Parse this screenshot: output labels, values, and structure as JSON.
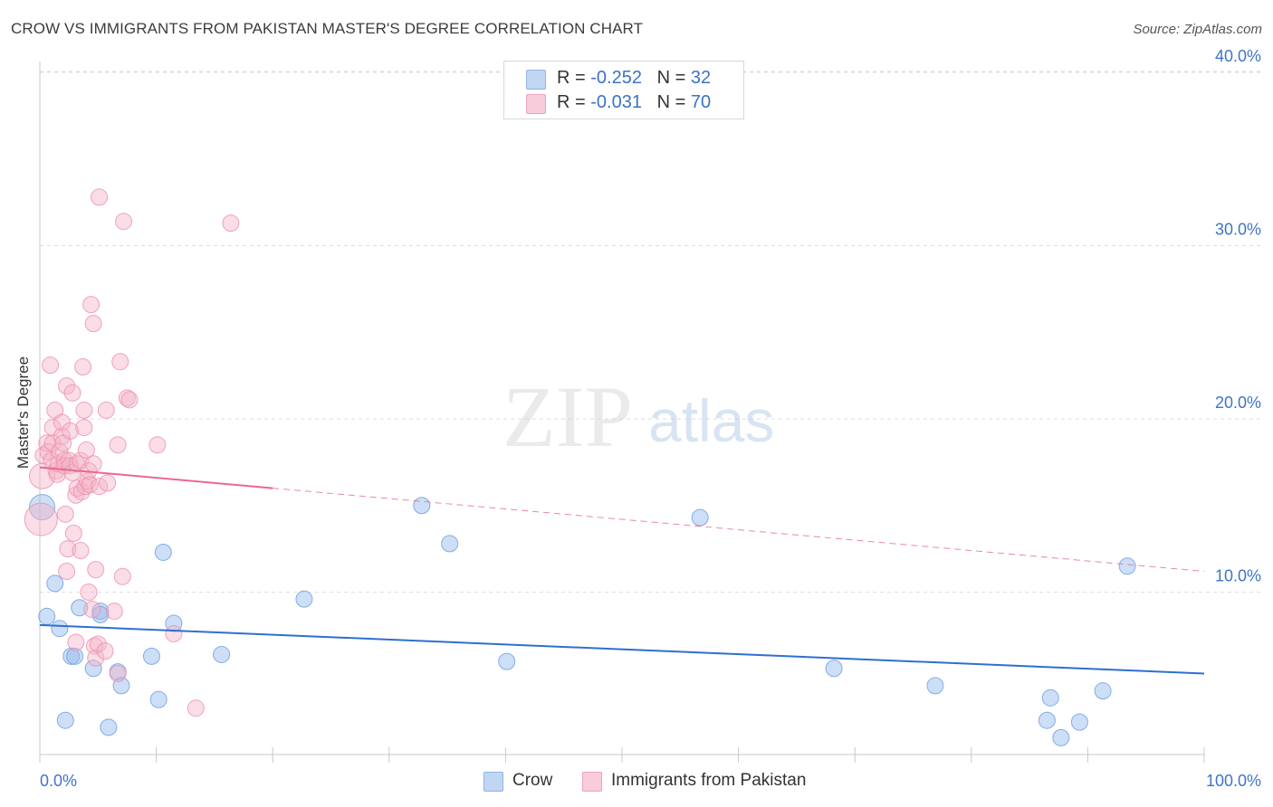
{
  "chart_data": {
    "type": "scatter",
    "title": "CROW VS IMMIGRANTS FROM PAKISTAN MASTER'S DEGREE CORRELATION CHART",
    "source": "Source: ZipAtlas.com",
    "xlabel": "",
    "ylabel": "Master's Degree",
    "xlim": [
      0,
      100
    ],
    "ylim": [
      0,
      42
    ],
    "x_tick_labels": [
      "0.0%",
      "100.0%"
    ],
    "y_ticks": [
      10,
      20,
      30,
      40
    ],
    "y_tick_labels": [
      "10.0%",
      "20.0%",
      "30.0%",
      "40.0%"
    ],
    "grid": true,
    "watermark": {
      "zip": "ZIP",
      "atlas": "atlas"
    },
    "legend": [
      {
        "r_label": "R =",
        "r_value": "-0.252",
        "n_label": "N =",
        "n_value": "32"
      },
      {
        "r_label": "R =",
        "r_value": "-0.031",
        "n_label": "N =",
        "n_value": "70"
      }
    ],
    "series": [
      {
        "name": "Crow",
        "color": "#8fb8ea",
        "stroke": "#6b9be0",
        "line_color": "#2f6fcf",
        "trend": {
          "x0": 0,
          "y0": 8.1,
          "x1": 100,
          "y1": 5.3,
          "solid_until": 100
        },
        "points": [
          [
            0.2,
            14.9,
            14
          ],
          [
            0.6,
            8.6,
            9
          ],
          [
            1.3,
            10.5,
            9
          ],
          [
            1.7,
            7.9,
            9
          ],
          [
            2.2,
            2.6,
            9
          ],
          [
            2.7,
            6.3,
            9
          ],
          [
            3.0,
            6.3,
            9
          ],
          [
            3.4,
            9.1,
            9
          ],
          [
            4.6,
            5.6,
            9
          ],
          [
            5.2,
            8.9,
            9
          ],
          [
            5.2,
            8.7,
            9
          ],
          [
            5.9,
            2.2,
            9
          ],
          [
            6.7,
            5.4,
            9
          ],
          [
            7.0,
            4.6,
            9
          ],
          [
            9.6,
            6.3,
            9
          ],
          [
            10.2,
            3.8,
            9
          ],
          [
            10.6,
            12.3,
            9
          ],
          [
            11.5,
            8.2,
            9
          ],
          [
            15.6,
            6.4,
            9
          ],
          [
            22.7,
            9.6,
            9
          ],
          [
            32.8,
            15.0,
            9
          ],
          [
            35.2,
            12.8,
            9
          ],
          [
            40.1,
            6.0,
            9
          ],
          [
            56.7,
            14.3,
            9
          ],
          [
            68.2,
            5.6,
            9
          ],
          [
            76.9,
            4.6,
            9
          ],
          [
            86.5,
            2.6,
            9
          ],
          [
            86.8,
            3.9,
            9
          ],
          [
            87.7,
            1.6,
            9
          ],
          [
            89.3,
            2.5,
            9
          ],
          [
            91.3,
            4.3,
            9
          ],
          [
            93.4,
            11.5,
            9
          ]
        ]
      },
      {
        "name": "Immigrants from Pakistan",
        "color": "#f4b3c8",
        "stroke": "#ec8fad",
        "line_color": "#e8688f",
        "trend": {
          "x0": 0,
          "y0": 17.2,
          "x1": 100,
          "y1": 11.2,
          "solid_until": 20
        },
        "points": [
          [
            0.1,
            14.2,
            18
          ],
          [
            0.2,
            16.7,
            14
          ],
          [
            0.3,
            17.9,
            9
          ],
          [
            0.6,
            18.6,
            9
          ],
          [
            0.7,
            18.1,
            9
          ],
          [
            0.9,
            23.1,
            9
          ],
          [
            1.0,
            17.6,
            9
          ],
          [
            1.1,
            19.5,
            9
          ],
          [
            1.1,
            18.6,
            9
          ],
          [
            1.3,
            20.5,
            9
          ],
          [
            1.4,
            17.0,
            9
          ],
          [
            1.5,
            16.8,
            9
          ],
          [
            1.6,
            17.4,
            9
          ],
          [
            1.7,
            18.1,
            9
          ],
          [
            1.9,
            19.0,
            9
          ],
          [
            1.9,
            19.8,
            9
          ],
          [
            2.0,
            18.6,
            9
          ],
          [
            2.1,
            17.6,
            9
          ],
          [
            2.1,
            17.3,
            9
          ],
          [
            2.2,
            14.5,
            9
          ],
          [
            2.3,
            21.9,
            9
          ],
          [
            2.3,
            11.2,
            9
          ],
          [
            2.4,
            12.5,
            9
          ],
          [
            2.5,
            17.6,
            9
          ],
          [
            2.6,
            19.3,
            9
          ],
          [
            2.6,
            17.3,
            9
          ],
          [
            2.8,
            21.5,
            9
          ],
          [
            2.8,
            16.9,
            9
          ],
          [
            2.9,
            13.4,
            9
          ],
          [
            3.1,
            7.1,
            9
          ],
          [
            3.1,
            15.6,
            9
          ],
          [
            3.2,
            17.4,
            9
          ],
          [
            3.2,
            16.0,
            9
          ],
          [
            3.5,
            12.4,
            9
          ],
          [
            3.5,
            17.6,
            9
          ],
          [
            3.6,
            15.8,
            9
          ],
          [
            3.7,
            23.0,
            9
          ],
          [
            3.8,
            19.5,
            9
          ],
          [
            3.8,
            20.5,
            9
          ],
          [
            3.9,
            16.1,
            9
          ],
          [
            4.0,
            18.2,
            9
          ],
          [
            4.1,
            16.4,
            9
          ],
          [
            4.2,
            10.0,
            9
          ],
          [
            4.2,
            17.0,
            9
          ],
          [
            4.3,
            16.2,
            9
          ],
          [
            4.4,
            26.6,
            9
          ],
          [
            4.5,
            9.0,
            9
          ],
          [
            4.6,
            25.5,
            9
          ],
          [
            4.6,
            17.4,
            9
          ],
          [
            4.7,
            6.9,
            9
          ],
          [
            4.8,
            6.2,
            9
          ],
          [
            4.8,
            11.3,
            9
          ],
          [
            5.0,
            7.0,
            9
          ],
          [
            5.1,
            16.1,
            9
          ],
          [
            5.1,
            32.8,
            9
          ],
          [
            5.6,
            6.6,
            9
          ],
          [
            5.7,
            20.5,
            9
          ],
          [
            5.8,
            16.3,
            9
          ],
          [
            6.4,
            8.9,
            9
          ],
          [
            6.7,
            5.3,
            9
          ],
          [
            6.7,
            18.5,
            9
          ],
          [
            6.9,
            23.3,
            9
          ],
          [
            7.1,
            10.9,
            9
          ],
          [
            7.2,
            31.4,
            9
          ],
          [
            7.5,
            21.2,
            9
          ],
          [
            7.7,
            21.1,
            9
          ],
          [
            10.1,
            18.5,
            9
          ],
          [
            11.5,
            7.6,
            9
          ],
          [
            13.4,
            3.3,
            9
          ],
          [
            16.4,
            31.3,
            9
          ]
        ]
      }
    ]
  }
}
